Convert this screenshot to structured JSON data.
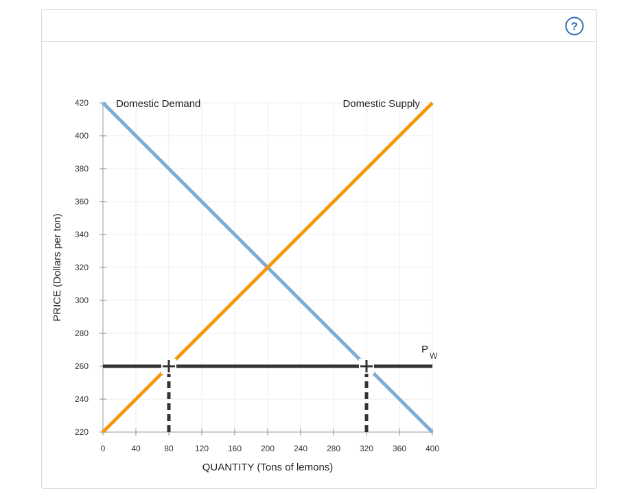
{
  "help": {
    "icon": "help-question-icon",
    "glyph": "?",
    "color": "#2f6fb5"
  },
  "chart_data": {
    "type": "line",
    "xlabel": "QUANTITY (Tons of lemons)",
    "ylabel": "PRICE (Dollars per ton)",
    "xlim": [
      0,
      400
    ],
    "ylim": [
      220,
      420
    ],
    "x_ticks": [
      0,
      40,
      80,
      120,
      160,
      200,
      240,
      280,
      320,
      360,
      400
    ],
    "y_ticks": [
      220,
      240,
      260,
      280,
      300,
      320,
      340,
      360,
      380,
      400,
      420
    ],
    "grid": true,
    "series": [
      {
        "name": "Domestic Demand",
        "color": "#7dadd6",
        "points": [
          [
            0,
            420
          ],
          [
            400,
            220
          ]
        ]
      },
      {
        "name": "Domestic Supply",
        "color": "#f6970c",
        "points": [
          [
            0,
            220
          ],
          [
            400,
            420
          ]
        ]
      },
      {
        "name": "PW",
        "color": "#333333",
        "points": [
          [
            0,
            260
          ],
          [
            400,
            260
          ]
        ]
      }
    ],
    "world_price": {
      "label_main": "P",
      "label_sub": "W",
      "value": 260
    },
    "markers": [
      {
        "x": 80,
        "y": 260
      },
      {
        "x": 320,
        "y": 260
      }
    ],
    "guides": [
      {
        "x": 80,
        "from": 220,
        "to": 260
      },
      {
        "x": 320,
        "from": 220,
        "to": 260
      }
    ]
  }
}
